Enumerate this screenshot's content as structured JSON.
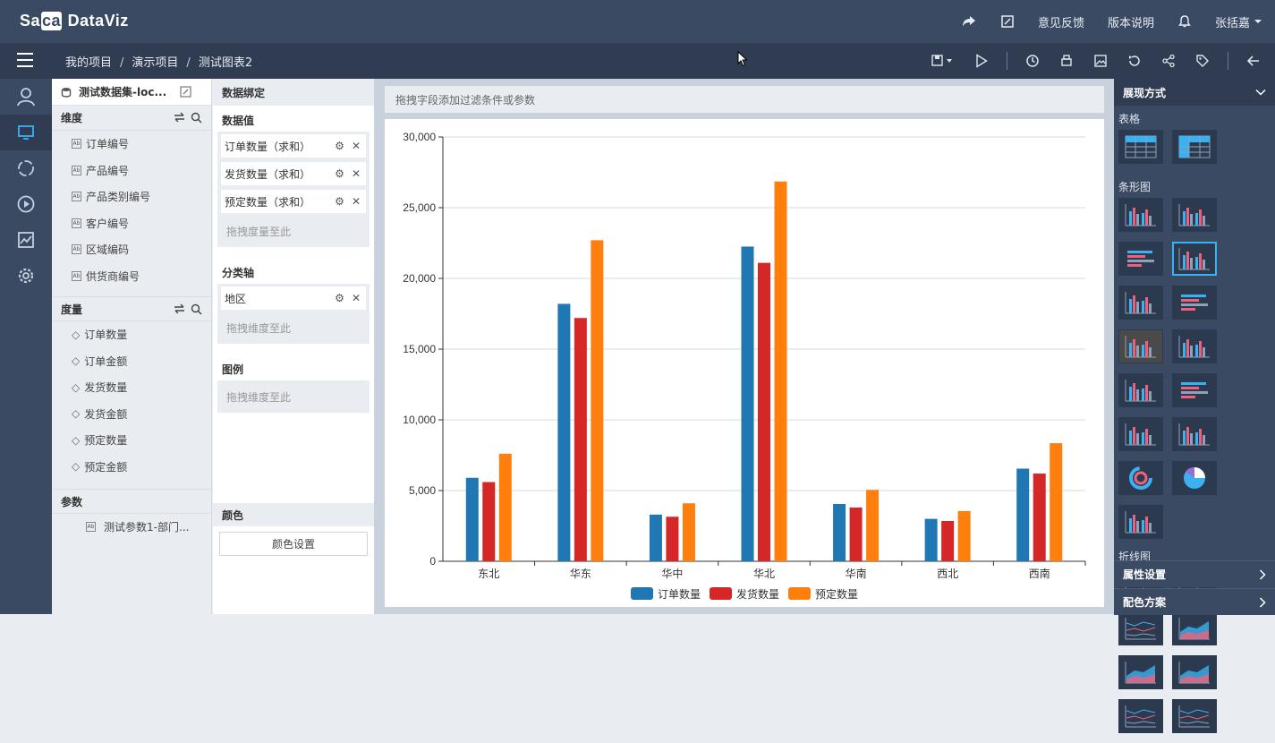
{
  "app": {
    "logo": "Sa",
    "logo_mid": "ca",
    "logo_rest": " DataViz"
  },
  "topbar": {
    "feedback": "意见反馈",
    "release_notes": "版本说明",
    "user": "张括嘉"
  },
  "breadcrumb": {
    "items": [
      "我的项目",
      "演示项目",
      "测试图表2"
    ],
    "sep": "/"
  },
  "dataset": {
    "name": "测试数据集-loc..."
  },
  "dimensions": {
    "title": "维度",
    "items": [
      "订单编号",
      "产品编号",
      "产品类别编号",
      "客户编号",
      "区域编码",
      "供货商编号"
    ]
  },
  "measures": {
    "title": "度量",
    "items": [
      "订单数量",
      "订单金额",
      "发货数量",
      "发货金额",
      "预定数量",
      "预定金额"
    ]
  },
  "params": {
    "title": "参数",
    "items": [
      "测试参数1-部门..."
    ]
  },
  "binding": {
    "title": "数据绑定",
    "values_title": "数据值",
    "values": [
      "订单数量（求和）",
      "发货数量（求和）",
      "预定数量（求和）"
    ],
    "values_drop": "拖拽度量至此",
    "axis_title": "分类轴",
    "axis": [
      "地区"
    ],
    "axis_drop": "拖拽维度至此",
    "legend_title": "图例",
    "legend_drop": "拖拽维度至此",
    "color_title": "颜色",
    "color_button": "颜色设置"
  },
  "filter": {
    "placeholder": "拖拽字段添加过滤条件或参数"
  },
  "right": {
    "title": "展现方式",
    "group_table": "表格",
    "group_bar": "条形图",
    "group_line": "折线图",
    "attr_settings": "属性设置",
    "color_scheme": "配色方案"
  },
  "chart_data": {
    "type": "bar",
    "categories": [
      "东北",
      "华东",
      "华中",
      "华北",
      "华南",
      "西北",
      "西南"
    ],
    "series": [
      {
        "name": "订单数量",
        "color": "#1f77b4",
        "values": [
          5900,
          18200,
          3300,
          22250,
          4050,
          3000,
          6550
        ]
      },
      {
        "name": "发货数量",
        "color": "#d62728",
        "values": [
          5600,
          17200,
          3150,
          21100,
          3800,
          2850,
          6200
        ]
      },
      {
        "name": "预定数量",
        "color": "#ff7f0e",
        "values": [
          7600,
          22700,
          4100,
          26850,
          5050,
          3550,
          8350
        ]
      }
    ],
    "ylim": [
      0,
      30000
    ],
    "yticks": [
      "0",
      "5,000",
      "10,000",
      "15,000",
      "20,000",
      "25,000",
      "30,000"
    ],
    "grid": true,
    "legend": "bottom"
  }
}
